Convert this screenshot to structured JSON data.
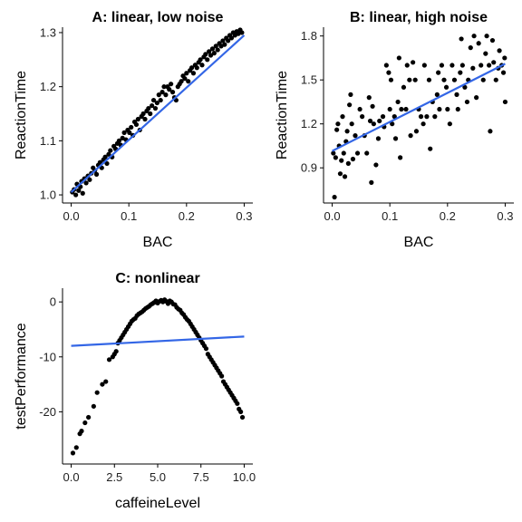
{
  "chart_data": [
    {
      "id": "A",
      "type": "scatter",
      "title": "A: linear, low noise",
      "xlabel": "BAC",
      "ylabel": "ReactionTime",
      "xlim": [
        -0.015,
        0.315
      ],
      "ylim": [
        0.985,
        1.31
      ],
      "xticks": [
        0.0,
        0.1,
        0.2,
        0.3
      ],
      "xtick_labels": [
        "0.0",
        "0.1",
        "0.2",
        "0.3"
      ],
      "yticks": [
        1.0,
        1.1,
        1.2,
        1.3
      ],
      "ytick_labels": [
        "1.0",
        "1.1",
        "1.2",
        "1.3"
      ],
      "points": [
        [
          0.002,
          1.005
        ],
        [
          0.005,
          1.01
        ],
        [
          0.008,
          1.0
        ],
        [
          0.01,
          1.02
        ],
        [
          0.013,
          1.008
        ],
        [
          0.016,
          1.015
        ],
        [
          0.018,
          1.025
        ],
        [
          0.02,
          1.003
        ],
        [
          0.023,
          1.03
        ],
        [
          0.026,
          1.022
        ],
        [
          0.029,
          1.035
        ],
        [
          0.032,
          1.028
        ],
        [
          0.035,
          1.04
        ],
        [
          0.038,
          1.05
        ],
        [
          0.041,
          1.045
        ],
        [
          0.044,
          1.038
        ],
        [
          0.047,
          1.055
        ],
        [
          0.05,
          1.06
        ],
        [
          0.053,
          1.05
        ],
        [
          0.056,
          1.065
        ],
        [
          0.059,
          1.07
        ],
        [
          0.062,
          1.058
        ],
        [
          0.065,
          1.075
        ],
        [
          0.068,
          1.082
        ],
        [
          0.071,
          1.07
        ],
        [
          0.074,
          1.09
        ],
        [
          0.077,
          1.085
        ],
        [
          0.08,
          1.095
        ],
        [
          0.083,
          1.1
        ],
        [
          0.086,
          1.092
        ],
        [
          0.089,
          1.105
        ],
        [
          0.092,
          1.115
        ],
        [
          0.095,
          1.102
        ],
        [
          0.098,
          1.12
        ],
        [
          0.101,
          1.115
        ],
        [
          0.104,
          1.125
        ],
        [
          0.107,
          1.11
        ],
        [
          0.11,
          1.135
        ],
        [
          0.113,
          1.13
        ],
        [
          0.116,
          1.14
        ],
        [
          0.119,
          1.12
        ],
        [
          0.122,
          1.145
        ],
        [
          0.125,
          1.15
        ],
        [
          0.128,
          1.14
        ],
        [
          0.131,
          1.155
        ],
        [
          0.134,
          1.16
        ],
        [
          0.137,
          1.15
        ],
        [
          0.14,
          1.165
        ],
        [
          0.143,
          1.175
        ],
        [
          0.146,
          1.16
        ],
        [
          0.149,
          1.17
        ],
        [
          0.152,
          1.185
        ],
        [
          0.155,
          1.175
        ],
        [
          0.158,
          1.19
        ],
        [
          0.161,
          1.2
        ],
        [
          0.164,
          1.185
        ],
        [
          0.167,
          1.2
        ],
        [
          0.17,
          1.195
        ],
        [
          0.173,
          1.205
        ],
        [
          0.176,
          1.19
        ],
        [
          0.179,
          1.18
        ],
        [
          0.182,
          1.175
        ],
        [
          0.185,
          1.2
        ],
        [
          0.188,
          1.205
        ],
        [
          0.191,
          1.21
        ],
        [
          0.194,
          1.22
        ],
        [
          0.197,
          1.215
        ],
        [
          0.2,
          1.225
        ],
        [
          0.203,
          1.21
        ],
        [
          0.206,
          1.23
        ],
        [
          0.209,
          1.235
        ],
        [
          0.212,
          1.225
        ],
        [
          0.215,
          1.24
        ],
        [
          0.218,
          1.235
        ],
        [
          0.221,
          1.245
        ],
        [
          0.224,
          1.25
        ],
        [
          0.227,
          1.24
        ],
        [
          0.23,
          1.255
        ],
        [
          0.233,
          1.26
        ],
        [
          0.236,
          1.25
        ],
        [
          0.239,
          1.265
        ],
        [
          0.242,
          1.258
        ],
        [
          0.245,
          1.27
        ],
        [
          0.248,
          1.262
        ],
        [
          0.251,
          1.275
        ],
        [
          0.254,
          1.268
        ],
        [
          0.257,
          1.28
        ],
        [
          0.26,
          1.275
        ],
        [
          0.263,
          1.285
        ],
        [
          0.266,
          1.278
        ],
        [
          0.269,
          1.29
        ],
        [
          0.272,
          1.285
        ],
        [
          0.275,
          1.295
        ],
        [
          0.278,
          1.29
        ],
        [
          0.281,
          1.3
        ],
        [
          0.284,
          1.295
        ],
        [
          0.287,
          1.302
        ],
        [
          0.29,
          1.298
        ],
        [
          0.293,
          1.305
        ],
        [
          0.296,
          1.3
        ]
      ],
      "fit": [
        [
          0.0,
          1.005
        ],
        [
          0.3,
          1.295
        ]
      ]
    },
    {
      "id": "B",
      "type": "scatter",
      "title": "B: linear, high noise",
      "xlabel": "BAC",
      "ylabel": "ReactionTime",
      "xlim": [
        -0.015,
        0.315
      ],
      "ylim": [
        0.66,
        1.86
      ],
      "xticks": [
        0.0,
        0.1,
        0.2,
        0.3
      ],
      "xtick_labels": [
        "0.0",
        "0.1",
        "0.2",
        "0.3"
      ],
      "yticks": [
        0.9,
        1.2,
        1.5,
        1.8
      ],
      "ytick_labels": [
        "0.9",
        "1.2",
        "1.5",
        "1.8"
      ],
      "points": [
        [
          0.002,
          1.0
        ],
        [
          0.004,
          0.7
        ],
        [
          0.006,
          0.97
        ],
        [
          0.008,
          1.16
        ],
        [
          0.01,
          1.2
        ],
        [
          0.012,
          1.05
        ],
        [
          0.014,
          0.86
        ],
        [
          0.016,
          0.95
        ],
        [
          0.018,
          1.25
        ],
        [
          0.02,
          1.0
        ],
        [
          0.022,
          0.84
        ],
        [
          0.024,
          1.08
        ],
        [
          0.026,
          1.15
        ],
        [
          0.028,
          0.93
        ],
        [
          0.03,
          1.33
        ],
        [
          0.032,
          1.4
        ],
        [
          0.034,
          1.2
        ],
        [
          0.036,
          0.96
        ],
        [
          0.04,
          1.12
        ],
        [
          0.044,
          1.0
        ],
        [
          0.048,
          1.3
        ],
        [
          0.052,
          1.25
        ],
        [
          0.056,
          1.12
        ],
        [
          0.06,
          1.0
        ],
        [
          0.064,
          1.38
        ],
        [
          0.066,
          1.22
        ],
        [
          0.068,
          0.8
        ],
        [
          0.07,
          1.32
        ],
        [
          0.072,
          1.2
        ],
        [
          0.076,
          0.92
        ],
        [
          0.08,
          1.1
        ],
        [
          0.082,
          1.22
        ],
        [
          0.088,
          1.25
        ],
        [
          0.09,
          1.18
        ],
        [
          0.094,
          1.6
        ],
        [
          0.098,
          1.55
        ],
        [
          0.1,
          1.3
        ],
        [
          0.102,
          1.5
        ],
        [
          0.104,
          1.2
        ],
        [
          0.108,
          1.25
        ],
        [
          0.11,
          1.1
        ],
        [
          0.114,
          1.35
        ],
        [
          0.116,
          1.65
        ],
        [
          0.118,
          0.97
        ],
        [
          0.12,
          1.3
        ],
        [
          0.124,
          1.45
        ],
        [
          0.128,
          1.3
        ],
        [
          0.13,
          1.6
        ],
        [
          0.134,
          1.5
        ],
        [
          0.136,
          1.12
        ],
        [
          0.14,
          1.62
        ],
        [
          0.144,
          1.5
        ],
        [
          0.146,
          1.15
        ],
        [
          0.15,
          1.3
        ],
        [
          0.154,
          1.25
        ],
        [
          0.158,
          1.2
        ],
        [
          0.16,
          1.6
        ],
        [
          0.164,
          1.25
        ],
        [
          0.168,
          1.5
        ],
        [
          0.17,
          1.03
        ],
        [
          0.174,
          1.35
        ],
        [
          0.178,
          1.25
        ],
        [
          0.182,
          1.4
        ],
        [
          0.184,
          1.55
        ],
        [
          0.186,
          1.3
        ],
        [
          0.19,
          1.6
        ],
        [
          0.194,
          1.5
        ],
        [
          0.198,
          1.45
        ],
        [
          0.2,
          1.3
        ],
        [
          0.204,
          1.2
        ],
        [
          0.208,
          1.6
        ],
        [
          0.212,
          1.5
        ],
        [
          0.216,
          1.4
        ],
        [
          0.218,
          1.3
        ],
        [
          0.222,
          1.55
        ],
        [
          0.224,
          1.78
        ],
        [
          0.226,
          1.6
        ],
        [
          0.23,
          1.45
        ],
        [
          0.234,
          1.35
        ],
        [
          0.236,
          1.5
        ],
        [
          0.24,
          1.72
        ],
        [
          0.244,
          1.58
        ],
        [
          0.246,
          1.8
        ],
        [
          0.25,
          1.38
        ],
        [
          0.254,
          1.75
        ],
        [
          0.258,
          1.6
        ],
        [
          0.262,
          1.5
        ],
        [
          0.266,
          1.68
        ],
        [
          0.268,
          1.8
        ],
        [
          0.272,
          1.6
        ],
        [
          0.274,
          1.15
        ],
        [
          0.278,
          1.77
        ],
        [
          0.28,
          1.62
        ],
        [
          0.284,
          1.5
        ],
        [
          0.288,
          1.58
        ],
        [
          0.29,
          1.7
        ],
        [
          0.294,
          1.6
        ],
        [
          0.297,
          1.55
        ],
        [
          0.299,
          1.65
        ],
        [
          0.3,
          1.35
        ]
      ],
      "fit": [
        [
          0.0,
          1.015
        ],
        [
          0.3,
          1.61
        ]
      ]
    },
    {
      "id": "C",
      "type": "scatter",
      "title": "C: nonlinear",
      "xlabel": "caffeineLevel",
      "ylabel": "testPerformance",
      "xlim": [
        -0.5,
        10.5
      ],
      "ylim": [
        -29.5,
        2.5
      ],
      "xticks": [
        0.0,
        2.5,
        5.0,
        7.5,
        10.0
      ],
      "xtick_labels": [
        "0.0",
        "2.5",
        "5.0",
        "7.5",
        "10.0"
      ],
      "yticks": [
        0,
        -10,
        -20
      ],
      "ytick_labels": [
        "0",
        "-10",
        "-20"
      ],
      "points": [
        [
          0.1,
          -27.5
        ],
        [
          0.3,
          -26.5
        ],
        [
          0.5,
          -24
        ],
        [
          0.6,
          -23.5
        ],
        [
          0.8,
          -22
        ],
        [
          1.0,
          -21
        ],
        [
          1.3,
          -19
        ],
        [
          1.5,
          -16.5
        ],
        [
          1.8,
          -15
        ],
        [
          2.0,
          -14.5
        ],
        [
          2.2,
          -10.5
        ],
        [
          2.4,
          -10
        ],
        [
          2.5,
          -9.5
        ],
        [
          2.6,
          -9
        ],
        [
          2.7,
          -7.5
        ],
        [
          2.8,
          -7
        ],
        [
          2.9,
          -6.5
        ],
        [
          3.0,
          -6
        ],
        [
          3.1,
          -5.5
        ],
        [
          3.2,
          -5
        ],
        [
          3.3,
          -4.5
        ],
        [
          3.4,
          -4
        ],
        [
          3.5,
          -3.5
        ],
        [
          3.6,
          -3.2
        ],
        [
          3.7,
          -3
        ],
        [
          3.8,
          -2.5
        ],
        [
          3.9,
          -2.2
        ],
        [
          4.0,
          -2
        ],
        [
          4.1,
          -1.8
        ],
        [
          4.2,
          -1.5
        ],
        [
          4.3,
          -1.2
        ],
        [
          4.4,
          -1
        ],
        [
          4.5,
          -0.8
        ],
        [
          4.6,
          -0.5
        ],
        [
          4.7,
          -0.3
        ],
        [
          4.8,
          -0.1
        ],
        [
          4.9,
          0.2
        ],
        [
          5.0,
          -0.2
        ],
        [
          5.1,
          0.1
        ],
        [
          5.2,
          0.3
        ],
        [
          5.3,
          0
        ],
        [
          5.4,
          0.4
        ],
        [
          5.5,
          0.1
        ],
        [
          5.6,
          -0.3
        ],
        [
          5.7,
          0.2
        ],
        [
          5.8,
          0
        ],
        [
          5.9,
          -0.4
        ],
        [
          6.0,
          -0.5
        ],
        [
          6.1,
          -1
        ],
        [
          6.2,
          -1.3
        ],
        [
          6.3,
          -1.5
        ],
        [
          6.4,
          -2
        ],
        [
          6.5,
          -2.3
        ],
        [
          6.6,
          -2.8
        ],
        [
          6.7,
          -3.2
        ],
        [
          6.8,
          -3.5
        ],
        [
          6.9,
          -4
        ],
        [
          7.0,
          -4.5
        ],
        [
          7.1,
          -5
        ],
        [
          7.2,
          -5.5
        ],
        [
          7.3,
          -6
        ],
        [
          7.4,
          -6.5
        ],
        [
          7.5,
          -7
        ],
        [
          7.6,
          -7.5
        ],
        [
          7.7,
          -8
        ],
        [
          7.8,
          -8.5
        ],
        [
          7.9,
          -9.5
        ],
        [
          8.0,
          -10
        ],
        [
          8.1,
          -10.5
        ],
        [
          8.2,
          -11
        ],
        [
          8.3,
          -11.5
        ],
        [
          8.4,
          -12
        ],
        [
          8.5,
          -12.5
        ],
        [
          8.6,
          -13
        ],
        [
          8.7,
          -13.5
        ],
        [
          8.8,
          -14.5
        ],
        [
          8.9,
          -15
        ],
        [
          9.0,
          -15.5
        ],
        [
          9.1,
          -16
        ],
        [
          9.2,
          -16.5
        ],
        [
          9.3,
          -17
        ],
        [
          9.4,
          -17.5
        ],
        [
          9.5,
          -18
        ],
        [
          9.6,
          -18.5
        ],
        [
          9.7,
          -19.5
        ],
        [
          9.8,
          -20
        ],
        [
          9.9,
          -21
        ]
      ],
      "fit": [
        [
          0.0,
          -8.0
        ],
        [
          10.0,
          -6.3
        ]
      ]
    }
  ]
}
